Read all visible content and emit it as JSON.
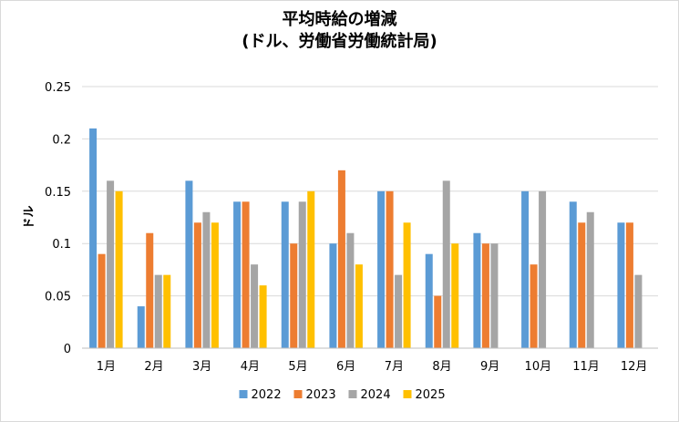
{
  "chart_data": {
    "type": "bar",
    "title": [
      "平均時給の増減",
      "(ドル、労働省労働統計局)"
    ],
    "ylabel": "ドル",
    "xlabel": "",
    "ylim": [
      0,
      0.25
    ],
    "yticks": [
      "0",
      "0.05",
      "0.1",
      "0.15",
      "0.2",
      "0.25"
    ],
    "grid": true,
    "legend_position": "bottom",
    "categories": [
      "1月",
      "2月",
      "3月",
      "4月",
      "5月",
      "6月",
      "7月",
      "8月",
      "9月",
      "10月",
      "11月",
      "12月"
    ],
    "series": [
      {
        "name": "2022",
        "color": "#5B9BD5",
        "values": [
          0.21,
          0.04,
          0.16,
          0.14,
          0.14,
          0.1,
          0.15,
          0.09,
          0.11,
          0.15,
          0.14,
          0.12
        ]
      },
      {
        "name": "2023",
        "color": "#ED7D31",
        "values": [
          0.09,
          0.11,
          0.12,
          0.14,
          0.1,
          0.17,
          0.15,
          0.05,
          0.1,
          0.08,
          0.12,
          0.12
        ]
      },
      {
        "name": "2024",
        "color": "#A5A5A5",
        "values": [
          0.16,
          0.07,
          0.13,
          0.08,
          0.14,
          0.11,
          0.07,
          0.16,
          0.1,
          0.15,
          0.13,
          0.07
        ]
      },
      {
        "name": "2025",
        "color": "#FFC000",
        "values": [
          0.15,
          0.07,
          0.12,
          0.06,
          0.15,
          0.08,
          0.12,
          0.1,
          null,
          null,
          null,
          null
        ]
      }
    ]
  }
}
